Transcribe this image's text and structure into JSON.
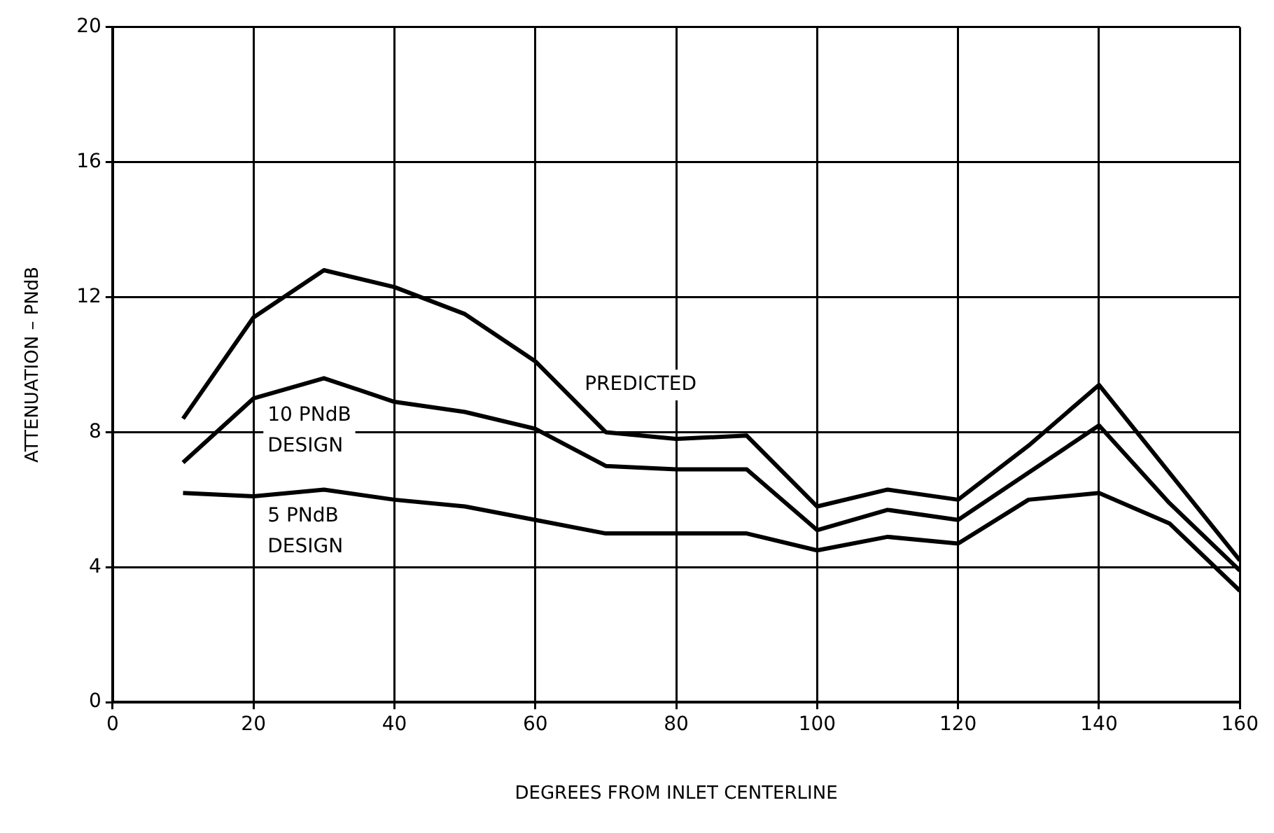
{
  "chart_data": {
    "type": "line",
    "xlabel": "DEGREES FROM INLET CENTERLINE",
    "ylabel": "ATTENUATION – PNdB",
    "x": [
      10,
      20,
      30,
      40,
      50,
      60,
      70,
      80,
      90,
      100,
      110,
      120,
      130,
      140,
      150,
      160
    ],
    "series": [
      {
        "name": "PREDICTED",
        "color": "#000000",
        "values": [
          8.4,
          11.4,
          12.8,
          12.3,
          11.5,
          10.1,
          8.0,
          7.8,
          7.9,
          5.8,
          6.3,
          6.0,
          7.6,
          9.4,
          6.8,
          4.2
        ]
      },
      {
        "name": "10 PNdB DESIGN",
        "color": "#000000",
        "values": [
          7.1,
          9.0,
          9.6,
          8.9,
          8.6,
          8.1,
          7.0,
          6.9,
          6.9,
          5.1,
          5.7,
          5.4,
          6.8,
          8.2,
          5.9,
          3.9
        ]
      },
      {
        "name": "5 PNdB DESIGN",
        "color": "#000000",
        "values": [
          6.2,
          6.1,
          6.3,
          6.0,
          5.8,
          5.4,
          5.0,
          5.0,
          5.0,
          4.5,
          4.9,
          4.7,
          6.0,
          6.2,
          5.3,
          3.3
        ]
      }
    ],
    "xlim": [
      0,
      160
    ],
    "xticks": [
      0,
      20,
      40,
      60,
      80,
      100,
      120,
      140,
      160
    ],
    "ylim": [
      0,
      20
    ],
    "yticks": [
      0,
      4,
      8,
      12,
      16,
      20
    ],
    "grid": true,
    "legend": false,
    "marker": "none",
    "line_style": "solid"
  }
}
